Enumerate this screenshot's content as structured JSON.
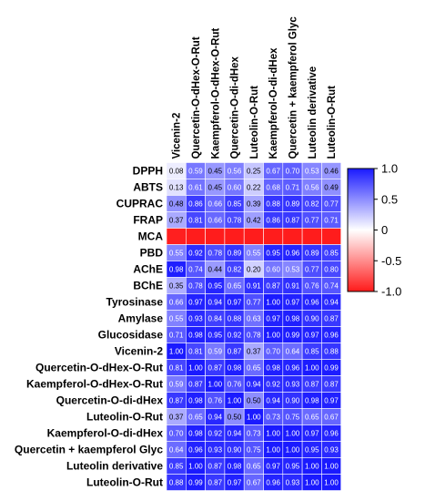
{
  "chart_data": {
    "type": "heatmap",
    "columns": [
      "Vicenin-2",
      "Quercetin-O-dHex-O-Rut",
      "Kaempferol-O-dHex-O-Rut",
      "Quercetin-O-di-dHex",
      "Luteolin-O-Rut",
      "Kaempferol-O-di-dHex",
      "Quercetin + kaempferol Glyc",
      "Luteolin derivative",
      "Luteolin-O-Rut"
    ],
    "rows": [
      "DPPH",
      "ABTS",
      "CUPRAC",
      "FRAP",
      "MCA",
      "PBD",
      "AChE",
      "BChE",
      "Tyrosinase",
      "Amylase",
      "Glucosidase",
      "Vicenin-2",
      "Quercetin-O-dHex-O-Rut",
      "Kaempferol-O-dHex-O-Rut",
      "Quercetin-O-di-dHex",
      "Luteolin-O-Rut",
      "Kaempferol-O-di-dHex",
      "Quercetin + kaempferol Glyc",
      "Luteolin derivative",
      "Luteolin-O-Rut"
    ],
    "values": [
      [
        0.08,
        0.59,
        0.45,
        0.56,
        0.25,
        0.67,
        0.7,
        0.53,
        0.46
      ],
      [
        0.13,
        0.61,
        0.45,
        0.6,
        0.22,
        0.68,
        0.71,
        0.56,
        0.49
      ],
      [
        0.48,
        0.86,
        0.66,
        0.85,
        0.39,
        0.88,
        0.89,
        0.82,
        0.77
      ],
      [
        0.37,
        0.81,
        0.66,
        0.78,
        0.42,
        0.86,
        0.87,
        0.77,
        0.71
      ],
      [
        -0.98,
        -0.99,
        -0.99,
        -0.99,
        -0.99,
        -0.99,
        -0.99,
        -0.99,
        -0.99
      ],
      [
        0.55,
        0.92,
        0.78,
        0.89,
        0.55,
        0.95,
        0.96,
        0.89,
        0.85
      ],
      [
        0.98,
        0.74,
        0.44,
        0.82,
        0.2,
        0.6,
        0.53,
        0.77,
        0.8
      ],
      [
        0.35,
        0.78,
        0.95,
        0.65,
        0.91,
        0.87,
        0.91,
        0.76,
        0.74
      ],
      [
        0.66,
        0.97,
        0.94,
        0.97,
        0.77,
        1.0,
        0.97,
        0.96,
        0.94
      ],
      [
        0.55,
        0.93,
        0.84,
        0.88,
        0.63,
        0.97,
        0.98,
        0.9,
        0.87
      ],
      [
        0.71,
        0.98,
        0.95,
        0.92,
        0.78,
        1.0,
        0.99,
        0.97,
        0.96
      ],
      [
        1.0,
        0.81,
        0.59,
        0.87,
        0.37,
        0.7,
        0.64,
        0.85,
        0.88
      ],
      [
        0.81,
        1.0,
        0.87,
        0.98,
        0.65,
        0.98,
        0.96,
        1.0,
        0.99
      ],
      [
        0.59,
        0.87,
        1.0,
        0.76,
        0.94,
        0.92,
        0.93,
        0.87,
        0.87
      ],
      [
        0.87,
        0.98,
        0.76,
        1.0,
        0.5,
        0.94,
        0.9,
        0.98,
        0.97
      ],
      [
        0.37,
        0.65,
        0.94,
        0.5,
        1.0,
        0.73,
        0.75,
        0.65,
        0.67
      ],
      [
        0.7,
        0.98,
        0.92,
        0.94,
        0.73,
        1.0,
        1.0,
        0.97,
        0.96
      ],
      [
        0.64,
        0.96,
        0.93,
        0.9,
        0.75,
        1.0,
        1.0,
        0.95,
        0.93
      ],
      [
        0.85,
        1.0,
        0.87,
        0.98,
        0.65,
        0.97,
        0.95,
        1.0,
        1.0
      ],
      [
        0.88,
        0.99,
        0.87,
        0.97,
        0.67,
        0.96,
        0.93,
        1.0,
        1.0
      ]
    ],
    "value_labels": [
      [
        "0.08",
        "0.59",
        "0.45",
        "0.56",
        "0.25",
        "0.67",
        "0.70",
        "0.53",
        "0.46"
      ],
      [
        "0.13",
        "0.61",
        "0.45",
        "0.60",
        "0.22",
        "0.68",
        "0.71",
        "0.56",
        "0.49"
      ],
      [
        "0.48",
        "0.86",
        "0.66",
        "0.85",
        "0.39",
        "0.88",
        "0.89",
        "0.82",
        "0.77"
      ],
      [
        "0.37",
        "0.81",
        "0.66",
        "0.78",
        "0.42",
        "0.86",
        "0.87",
        "0.77",
        "0.71"
      ],
      [
        "",
        "",
        "",
        "",
        "",
        "",
        "",
        "",
        ""
      ],
      [
        "0.55",
        "0.92",
        "0.78",
        "0.89",
        "0.55",
        "0.95",
        "0.96",
        "0.89",
        "0.85"
      ],
      [
        "0.98",
        "0.74",
        "0.44",
        "0.82",
        "0.20",
        "0.60",
        "0.53",
        "0.77",
        "0.80"
      ],
      [
        "0.35",
        "0.78",
        "0.95",
        "0.65",
        "0.91",
        "0.87",
        "0.91",
        "0.76",
        "0.74"
      ],
      [
        "0.66",
        "0.97",
        "0.94",
        "0.97",
        "0.77",
        "1.00",
        "0.97",
        "0.96",
        "0.94"
      ],
      [
        "0.55",
        "0.93",
        "0.84",
        "0.88",
        "0.63",
        "0.97",
        "0.98",
        "0.90",
        "0.87"
      ],
      [
        "0.71",
        "0.98",
        "0.95",
        "0.92",
        "0.78",
        "1.00",
        "0.99",
        "0.97",
        "0.96"
      ],
      [
        "1.00",
        "0.81",
        "0.59",
        "0.87",
        "0.37",
        "0.70",
        "0.64",
        "0.85",
        "0.88"
      ],
      [
        "0.81",
        "1.00",
        "0.87",
        "0.98",
        "0.65",
        "0.98",
        "0.96",
        "1.00",
        "0.99"
      ],
      [
        "0.59",
        "0.87",
        "1.00",
        "0.76",
        "0.94",
        "0.92",
        "0.93",
        "0.87",
        "0.87"
      ],
      [
        "0.87",
        "0.98",
        "0.76",
        "1.00",
        "0.50",
        "0.94",
        "0.90",
        "0.98",
        "0.97"
      ],
      [
        "0.37",
        "0.65",
        "0.94",
        "0.50",
        "1.00",
        "0.73",
        "0.75",
        "0.65",
        "0.67"
      ],
      [
        "0.70",
        "0.98",
        "0.92",
        "0.94",
        "0.73",
        "1.00",
        "1.00",
        "0.97",
        "0.96"
      ],
      [
        "0.64",
        "0.96",
        "0.93",
        "0.90",
        "0.75",
        "1.00",
        "1.00",
        "0.95",
        "0.93"
      ],
      [
        "0.85",
        "1.00",
        "0.87",
        "0.98",
        "0.65",
        "0.97",
        "0.95",
        "1.00",
        "1.00"
      ],
      [
        "0.88",
        "0.99",
        "0.87",
        "0.97",
        "0.67",
        "0.96",
        "0.93",
        "1.00",
        "1.00"
      ]
    ],
    "colorbar": {
      "range": [
        -1.0,
        1.0
      ],
      "ticks": [
        1.0,
        0.5,
        0,
        -0.5,
        -1.0
      ],
      "tick_labels": [
        "1.0",
        "0.5",
        "0",
        "-0.5",
        "-1.0"
      ],
      "positive_color": "#1a1aff",
      "zero_color": "#ffffff",
      "negative_color": "#ff1a1a"
    },
    "title": "",
    "xlabel": "",
    "ylabel": ""
  }
}
